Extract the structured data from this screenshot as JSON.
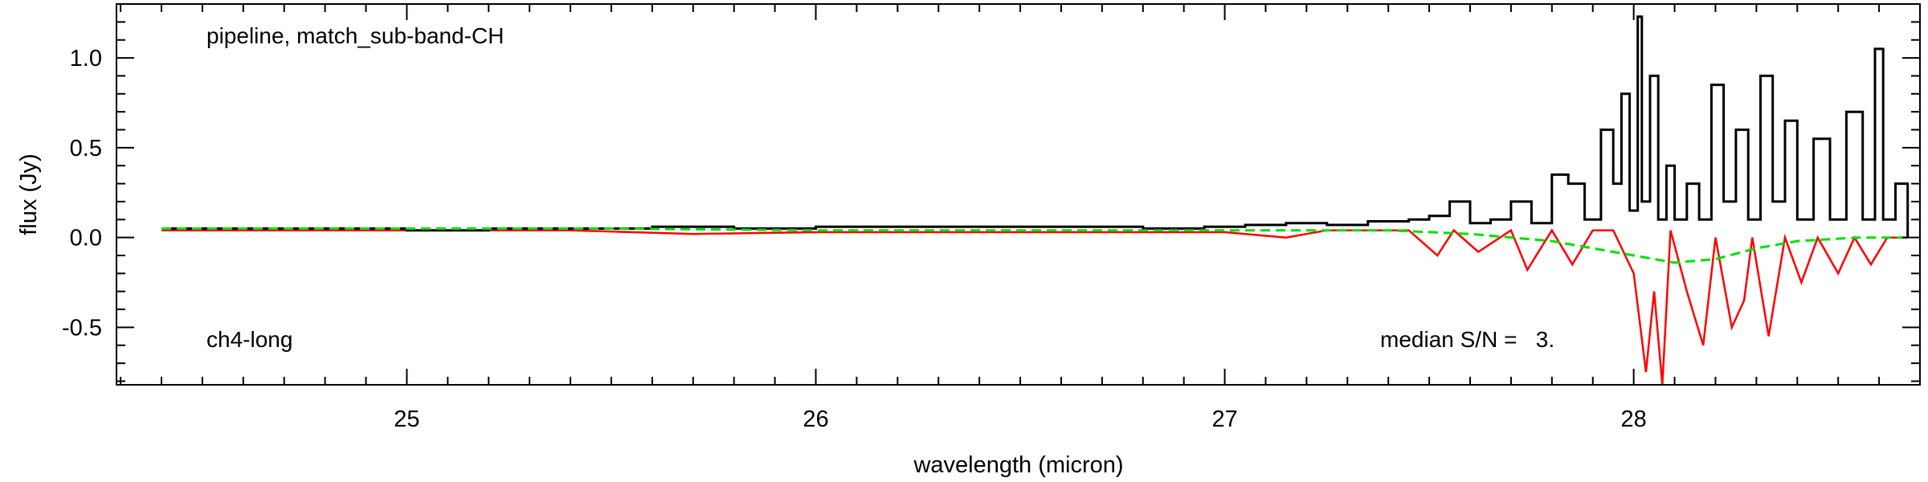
{
  "chart_data": {
    "type": "line",
    "xlabel": "wavelength (micron)",
    "ylabel": "flux (Jy)",
    "xlim": [
      24.29,
      28.7
    ],
    "ylim": [
      -0.82,
      1.3
    ],
    "xticks": [
      {
        "value": 25,
        "label": "25"
      },
      {
        "value": 26,
        "label": "26"
      },
      {
        "value": 27,
        "label": "27"
      },
      {
        "value": 28,
        "label": "28"
      }
    ],
    "yticks": [
      {
        "value": -0.5,
        "label": "-0.5"
      },
      {
        "value": 0.0,
        "label": "0.0"
      },
      {
        "value": 0.5,
        "label": "0.5"
      },
      {
        "value": 1.0,
        "label": "1.0"
      }
    ],
    "annotations": {
      "top_left": "pipeline, match_sub-band-CH",
      "bottom_left": "ch4-long",
      "bottom_right": "median S/N =   3."
    },
    "colors": {
      "flux": "#000000",
      "error": "#ff0000",
      "continuum": "#00e000",
      "axes": "#000000"
    },
    "series": [
      {
        "style": "black-step",
        "color": "#000000",
        "points": [
          [
            24.4,
            0.05
          ],
          [
            24.6,
            0.05
          ],
          [
            24.8,
            0.05
          ],
          [
            25.0,
            0.04
          ],
          [
            25.2,
            0.05
          ],
          [
            25.4,
            0.05
          ],
          [
            25.6,
            0.06
          ],
          [
            25.8,
            0.05
          ],
          [
            26.0,
            0.06
          ],
          [
            26.2,
            0.06
          ],
          [
            26.4,
            0.06
          ],
          [
            26.6,
            0.06
          ],
          [
            26.8,
            0.05
          ],
          [
            26.95,
            0.06
          ],
          [
            27.05,
            0.07
          ],
          [
            27.15,
            0.08
          ],
          [
            27.25,
            0.07
          ],
          [
            27.35,
            0.09
          ],
          [
            27.45,
            0.1
          ],
          [
            27.5,
            0.12
          ],
          [
            27.55,
            0.2
          ],
          [
            27.6,
            0.08
          ],
          [
            27.65,
            0.1
          ],
          [
            27.7,
            0.2
          ],
          [
            27.75,
            0.08
          ],
          [
            27.8,
            0.35
          ],
          [
            27.84,
            0.3
          ],
          [
            27.88,
            0.1
          ],
          [
            27.92,
            0.6
          ],
          [
            27.95,
            0.3
          ],
          [
            27.97,
            0.8
          ],
          [
            27.99,
            0.15
          ],
          [
            28.01,
            1.23
          ],
          [
            28.02,
            0.2
          ],
          [
            28.04,
            0.9
          ],
          [
            28.06,
            0.1
          ],
          [
            28.08,
            0.4
          ],
          [
            28.1,
            0.1
          ],
          [
            28.13,
            0.3
          ],
          [
            28.16,
            0.1
          ],
          [
            28.19,
            0.85
          ],
          [
            28.22,
            0.2
          ],
          [
            28.25,
            0.6
          ],
          [
            28.28,
            0.1
          ],
          [
            28.31,
            0.9
          ],
          [
            28.34,
            0.2
          ],
          [
            28.37,
            0.65
          ],
          [
            28.4,
            0.1
          ],
          [
            28.44,
            0.55
          ],
          [
            28.48,
            0.1
          ],
          [
            28.52,
            0.7
          ],
          [
            28.56,
            0.1
          ],
          [
            28.59,
            1.05
          ],
          [
            28.61,
            0.1
          ],
          [
            28.64,
            0.3
          ],
          [
            28.67,
            0.0
          ]
        ]
      },
      {
        "style": "red-error",
        "color": "#ff0000",
        "points": [
          [
            24.4,
            0.04
          ],
          [
            24.8,
            0.04
          ],
          [
            25.4,
            0.04
          ],
          [
            25.7,
            0.02
          ],
          [
            26.0,
            0.03
          ],
          [
            26.5,
            0.03
          ],
          [
            27.0,
            0.03
          ],
          [
            27.15,
            0.0
          ],
          [
            27.25,
            0.04
          ],
          [
            27.45,
            0.04
          ],
          [
            27.52,
            -0.1
          ],
          [
            27.56,
            0.04
          ],
          [
            27.62,
            -0.08
          ],
          [
            27.7,
            0.04
          ],
          [
            27.74,
            -0.18
          ],
          [
            27.8,
            0.04
          ],
          [
            27.85,
            -0.15
          ],
          [
            27.9,
            0.04
          ],
          [
            27.95,
            0.04
          ],
          [
            28.0,
            -0.2
          ],
          [
            28.03,
            -0.75
          ],
          [
            28.05,
            -0.3
          ],
          [
            28.07,
            -0.82
          ],
          [
            28.09,
            0.04
          ],
          [
            28.13,
            -0.3
          ],
          [
            28.17,
            -0.6
          ],
          [
            28.2,
            0.0
          ],
          [
            28.24,
            -0.5
          ],
          [
            28.27,
            -0.35
          ],
          [
            28.29,
            0.0
          ],
          [
            28.33,
            -0.55
          ],
          [
            28.37,
            0.0
          ],
          [
            28.41,
            -0.25
          ],
          [
            28.45,
            0.0
          ],
          [
            28.5,
            -0.2
          ],
          [
            28.54,
            0.0
          ],
          [
            28.58,
            -0.15
          ],
          [
            28.62,
            0.0
          ],
          [
            28.67,
            0.0
          ]
        ]
      },
      {
        "style": "green-dashed",
        "color": "#00e000",
        "points": [
          [
            24.4,
            0.05
          ],
          [
            25.0,
            0.05
          ],
          [
            25.5,
            0.05
          ],
          [
            26.0,
            0.04
          ],
          [
            26.5,
            0.04
          ],
          [
            27.0,
            0.04
          ],
          [
            27.4,
            0.04
          ],
          [
            27.6,
            0.02
          ],
          [
            27.8,
            -0.02
          ],
          [
            27.95,
            -0.08
          ],
          [
            28.1,
            -0.14
          ],
          [
            28.2,
            -0.12
          ],
          [
            28.3,
            -0.06
          ],
          [
            28.4,
            -0.02
          ],
          [
            28.55,
            0.0
          ],
          [
            28.67,
            0.0
          ]
        ]
      }
    ]
  }
}
